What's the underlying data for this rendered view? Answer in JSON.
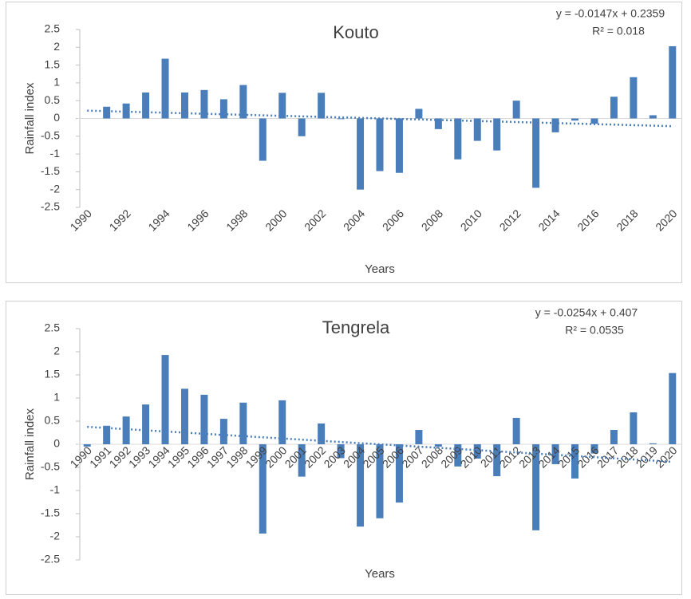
{
  "chart_data": [
    {
      "type": "bar",
      "title": "Kouto",
      "x_label": "Years",
      "y_label": "Rainfall index",
      "equation": "y = -0.0147x + 0.2359",
      "r_squared": "R² = 0.018",
      "categories": [
        "1990",
        null,
        "1992",
        null,
        "1994",
        null,
        "1996",
        null,
        "1998",
        null,
        "2000",
        null,
        "2002",
        null,
        "2004",
        null,
        "2006",
        null,
        "2008",
        null,
        "2010",
        null,
        "2012",
        null,
        "2014",
        null,
        "2016",
        null,
        "2018",
        null,
        "2020"
      ],
      "values": [
        0,
        0.33,
        0.42,
        0.73,
        1.68,
        0.73,
        0.8,
        0.54,
        0.94,
        -1.19,
        0.72,
        -0.5,
        0.72,
        -0.02,
        -2.0,
        -1.48,
        -1.53,
        0.27,
        -0.3,
        -1.15,
        -0.63,
        -0.9,
        0.5,
        -1.95,
        -0.39,
        -0.06,
        -0.15,
        0.61,
        1.16,
        0.09,
        2.03
      ],
      "color": "#4a7ebb",
      "trendline": "linear",
      "ylim": [
        -2.5,
        2.5
      ],
      "yticks": [
        -2.5,
        -2,
        -1.5,
        -1,
        -0.5,
        0,
        0.5,
        1,
        1.5,
        2,
        2.5
      ]
    },
    {
      "type": "bar",
      "title": "Tengrela",
      "x_label": "Years",
      "y_label": "Rainfall index",
      "equation": "y = -0.0254x + 0.407",
      "r_squared": "R² = 0.0535",
      "categories": [
        "1990",
        "1991",
        "1992",
        "1993",
        "1994",
        "1995",
        "1996",
        "1997",
        "1998",
        "1999",
        "2000",
        "2001",
        "2002",
        "2003",
        "2004",
        "2005",
        "2006",
        "2007",
        "2008",
        "2009",
        "2010",
        "2011",
        "2012",
        "2013",
        "2014",
        "2015",
        "2016",
        "2017",
        "2018",
        "2019",
        "2020"
      ],
      "values": [
        -0.05,
        0.4,
        0.6,
        0.86,
        1.93,
        1.2,
        1.07,
        0.55,
        0.9,
        -1.93,
        0.95,
        -0.7,
        0.45,
        -0.3,
        -1.78,
        -1.6,
        -1.26,
        0.31,
        -0.05,
        -0.48,
        -0.31,
        -0.69,
        0.57,
        -1.86,
        -0.43,
        -0.74,
        -0.2,
        0.31,
        0.69,
        0.02,
        1.54
      ],
      "color": "#4a7ebb",
      "trendline": "linear",
      "ylim": [
        -2.5,
        2.5
      ],
      "yticks": [
        -2.5,
        -2,
        -1.5,
        -1,
        -0.5,
        0,
        0.5,
        1,
        1.5,
        2,
        2.5
      ]
    }
  ]
}
